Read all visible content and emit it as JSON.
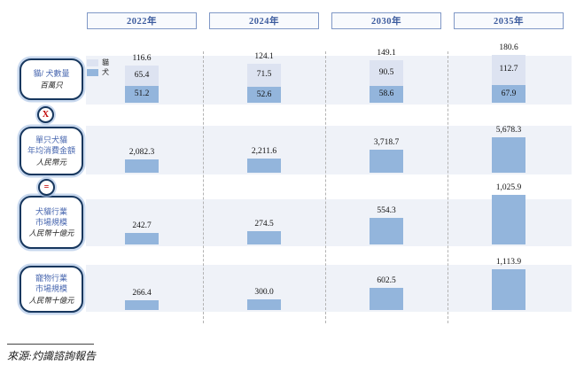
{
  "header": {
    "years": [
      "2022年",
      "2024年",
      "2030年",
      "2035年"
    ]
  },
  "left_labels": [
    {
      "lines": [
        "貓/ 犬數量"
      ],
      "unit": "百萬只"
    },
    {
      "lines": [
        "單只犬貓",
        "年均消費金額"
      ],
      "unit": "人民幣元"
    },
    {
      "lines": [
        "犬貓行業",
        "市場規模"
      ],
      "unit": "人民幣十億元"
    },
    {
      "lines": [
        "寵物行業",
        "市場規模"
      ],
      "unit": "人民幣十億元"
    }
  ],
  "operators": {
    "multiply": "X",
    "equals": "="
  },
  "legend": {
    "cat": "貓",
    "dog": "犬"
  },
  "source": {
    "text": "來源:灼識諮詢報告"
  },
  "colors": {
    "bar_blue": "#93b5dc",
    "bar_light": "#dde3f1",
    "band": "#eff2f8",
    "navy": "#17375e",
    "blue_text": "#4a68b0",
    "red": "#c00000",
    "year_text": "#3d5c9e"
  },
  "chart_data": [
    {
      "row": "cat-dog-population",
      "type": "bar",
      "stacked": true,
      "title": "貓/ 犬數量",
      "ylabel": "百萬只",
      "categories": [
        "2022年",
        "2024年",
        "2030年",
        "2035年"
      ],
      "series": [
        {
          "name": "貓",
          "values": [
            65.4,
            71.5,
            90.5,
            112.7
          ],
          "labels": [
            "65.4",
            "71.5",
            "90.5",
            "112.7"
          ]
        },
        {
          "name": "犬",
          "values": [
            51.2,
            52.6,
            58.6,
            67.9
          ],
          "labels": [
            "51.2",
            "52.6",
            "58.6",
            "67.9"
          ]
        }
      ],
      "totals": [
        116.6,
        124.1,
        149.1,
        180.6
      ],
      "total_labels": [
        "116.6",
        "124.1",
        "149.1",
        "180.6"
      ],
      "legend_position": "top-left"
    },
    {
      "row": "annual-spend-per-pet",
      "type": "bar",
      "stacked": false,
      "title": "單只犬貓年均消費金額",
      "ylabel": "人民幣元",
      "categories": [
        "2022年",
        "2024年",
        "2030年",
        "2035年"
      ],
      "values": [
        2082.3,
        2211.6,
        3718.7,
        5678.3
      ],
      "labels": [
        "2,082.3",
        "2,211.6",
        "3,718.7",
        "5,678.3"
      ]
    },
    {
      "row": "dog-cat-industry-market-size",
      "type": "bar",
      "stacked": false,
      "title": "犬貓行業市場規模",
      "ylabel": "人民幣十億元",
      "categories": [
        "2022年",
        "2024年",
        "2030年",
        "2035年"
      ],
      "values": [
        242.7,
        274.5,
        554.3,
        1025.9
      ],
      "labels": [
        "242.7",
        "274.5",
        "554.3",
        "1,025.9"
      ]
    },
    {
      "row": "pet-industry-market-size",
      "type": "bar",
      "stacked": false,
      "title": "寵物行業市場規模",
      "ylabel": "人民幣十億元",
      "categories": [
        "2022年",
        "2024年",
        "2030年",
        "2035年"
      ],
      "values": [
        266.4,
        300.0,
        602.5,
        1113.9
      ],
      "labels": [
        "266.4",
        "300.0",
        "602.5",
        "1,113.9"
      ]
    }
  ]
}
